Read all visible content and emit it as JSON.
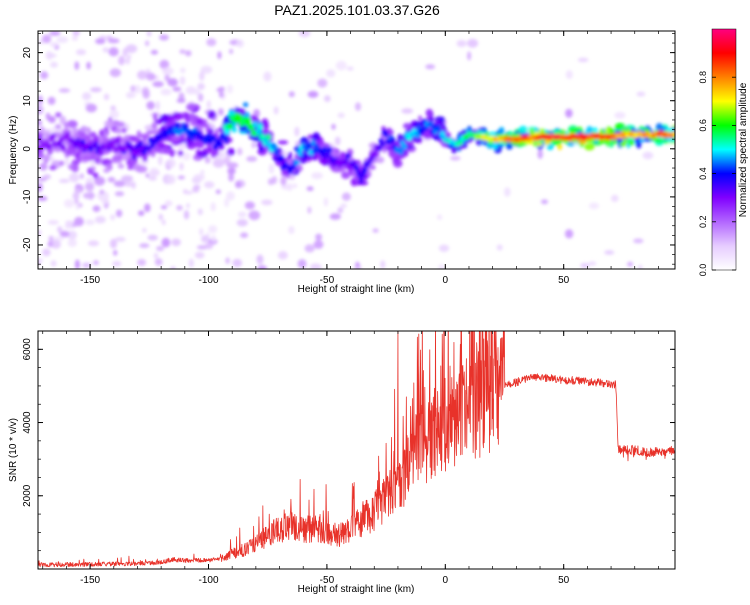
{
  "title": "PAZ1.2025.101.03.37.G26",
  "chart_data": [
    {
      "type": "heatmap",
      "xlabel": "Height of straight line (km)",
      "ylabel": "Frequency (Hz)",
      "xlim": [
        -172,
        97
      ],
      "ylim": [
        -25,
        24.5
      ],
      "x_ticks": [
        -150,
        -100,
        -50,
        0,
        50
      ],
      "y_ticks": [
        -20,
        -10,
        0,
        10,
        20
      ],
      "colorbar": {
        "label": "Normalized spectral amplitude",
        "range": [
          0,
          1
        ],
        "ticks": [
          0.0,
          0.2,
          0.4,
          0.6,
          0.8
        ],
        "colors": [
          "#ffffff",
          "#e6ccff",
          "#b266ff",
          "#8000ff",
          "#0000ff",
          "#00ffff",
          "#00ff00",
          "#ffff00",
          "#ff8000",
          "#ff0000",
          "#ff0080"
        ]
      },
      "ridge": {
        "x": [
          -170,
          -160,
          -150,
          -140,
          -130,
          -120,
          -110,
          -100,
          -95,
          -90,
          -85,
          -80,
          -75,
          -70,
          -65,
          -60,
          -55,
          -50,
          -45,
          -40,
          -35,
          -30,
          -25,
          -20,
          -15,
          -10,
          -5,
          0,
          5,
          10,
          20,
          30,
          40,
          50,
          60,
          70,
          80,
          90,
          97
        ],
        "y": [
          1,
          2,
          0,
          1,
          -1,
          3,
          4,
          2,
          1,
          6,
          6,
          4,
          2,
          -2,
          -4,
          0,
          0,
          -1,
          -3,
          -3,
          -6,
          -1,
          3,
          -1,
          3,
          4,
          5,
          2,
          1,
          3,
          2,
          2,
          2.5,
          2.5,
          2.5,
          2.5,
          3,
          3,
          3
        ],
        "amplitude": [
          0.3,
          0.3,
          0.35,
          0.3,
          0.35,
          0.4,
          0.45,
          0.4,
          0.4,
          0.65,
          0.6,
          0.55,
          0.55,
          0.4,
          0.4,
          0.5,
          0.45,
          0.4,
          0.35,
          0.35,
          0.4,
          0.3,
          0.4,
          0.45,
          0.5,
          0.45,
          0.45,
          0.5,
          0.55,
          0.6,
          0.75,
          0.85,
          0.92,
          0.95,
          0.95,
          0.85,
          0.8,
          0.85,
          0.85
        ]
      }
    },
    {
      "type": "line",
      "xlabel": "Height of straight line (km)",
      "ylabel": "SNR (10 * v/v)",
      "xlim": [
        -172,
        97
      ],
      "ylim": [
        0,
        6500
      ],
      "x_ticks": [
        -150,
        -100,
        -50,
        0,
        50
      ],
      "y_ticks": [
        2000,
        4000,
        6000
      ],
      "color": "#e8322a",
      "series": [
        {
          "x": [
            -172,
            -160,
            -150,
            -140,
            -130,
            -120,
            -115,
            -110,
            -100,
            -95,
            -90,
            -85,
            -80,
            -75,
            -70,
            -65,
            -60,
            -55,
            -50,
            -45,
            -40,
            -35,
            -30,
            -25,
            -20,
            -15,
            -10,
            -5,
            0,
            5,
            10,
            15,
            20,
            25,
            30,
            35,
            40,
            45,
            50,
            55,
            60,
            65,
            70,
            72,
            73,
            75,
            80,
            85,
            90,
            97
          ],
          "y": [
            120,
            120,
            130,
            140,
            150,
            180,
            260,
            230,
            240,
            280,
            420,
            520,
            700,
            900,
            1100,
            1200,
            1100,
            1100,
            1000,
            900,
            1100,
            1300,
            1600,
            1900,
            2300,
            2900,
            3400,
            3800,
            3900,
            4100,
            4400,
            4700,
            4900,
            5000,
            5100,
            5200,
            5250,
            5200,
            5150,
            5150,
            5100,
            5100,
            5050,
            5050,
            3300,
            3250,
            3250,
            3200,
            3200,
            3250
          ]
        }
      ]
    }
  ]
}
